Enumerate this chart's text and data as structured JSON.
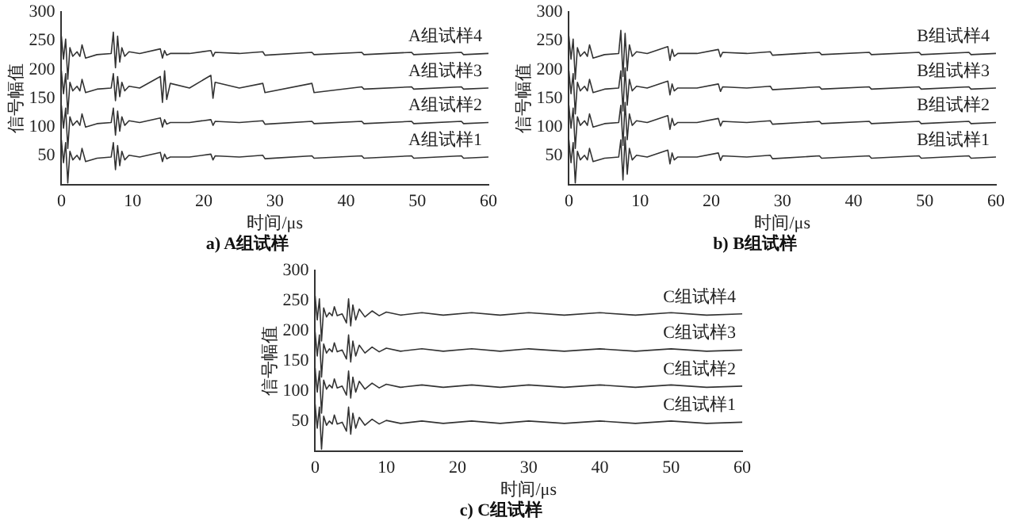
{
  "chart_data": [
    {
      "type": "line",
      "title": "a) A组试样",
      "xlabel": "时间/μs",
      "ylabel": "信号幅值",
      "xlim": [
        0,
        60
      ],
      "xticks": [
        0,
        10,
        20,
        30,
        40,
        50,
        60
      ],
      "ylim": [
        0,
        300
      ],
      "yticks": [
        50,
        100,
        150,
        200,
        250,
        300
      ],
      "grid": false,
      "legend": false,
      "x": [
        0,
        0.3,
        0.6,
        0.9,
        1.2,
        1.6,
        2.2,
        2.6,
        2.9,
        3.4,
        5,
        7,
        7.3,
        7.6,
        7.9,
        8.2,
        8.5,
        8.9,
        9.5,
        11,
        13.9,
        14.2,
        14.5,
        14.8,
        15.3,
        18,
        21,
        21.3,
        21.6,
        25,
        28.3,
        28.6,
        35.2,
        35.5,
        42.2,
        42.5,
        49.2,
        49.5,
        56.2,
        56.5,
        60
      ],
      "series": [
        {
          "name": "A组试样1",
          "color": "#333333",
          "values": [
            78,
            38,
            73,
            3,
            58,
            43,
            51,
            43,
            63,
            40,
            46,
            48,
            73,
            26,
            68,
            33,
            58,
            43,
            51,
            48,
            56,
            40,
            53,
            45,
            48,
            48,
            53,
            43,
            50,
            48,
            51,
            45,
            50,
            46,
            50,
            46,
            50,
            46,
            50,
            46,
            48
          ]
        },
        {
          "name": "A组试样2",
          "color": "#333333",
          "values": [
            138,
            98,
            133,
            63,
            118,
            103,
            111,
            103,
            123,
            100,
            106,
            108,
            133,
            86,
            128,
            93,
            118,
            103,
            111,
            108,
            116,
            100,
            113,
            105,
            108,
            108,
            113,
            103,
            110,
            108,
            111,
            105,
            110,
            106,
            110,
            106,
            110,
            106,
            110,
            106,
            108
          ]
        },
        {
          "name": "A组试样3",
          "color": "#333333",
          "values": [
            198,
            158,
            193,
            123,
            178,
            163,
            171,
            163,
            183,
            160,
            166,
            168,
            193,
            146,
            188,
            153,
            178,
            163,
            171,
            168,
            188,
            143,
            198,
            148,
            176,
            168,
            190,
            150,
            178,
            168,
            176,
            160,
            176,
            160,
            170,
            166,
            170,
            166,
            170,
            166,
            168
          ]
        },
        {
          "name": "A组试样4",
          "color": "#333333",
          "values": [
            258,
            218,
            253,
            183,
            238,
            223,
            231,
            223,
            243,
            220,
            226,
            228,
            265,
            203,
            258,
            213,
            238,
            223,
            231,
            228,
            236,
            220,
            233,
            225,
            228,
            228,
            233,
            223,
            230,
            228,
            231,
            225,
            230,
            226,
            230,
            226,
            230,
            226,
            230,
            226,
            228
          ]
        }
      ]
    },
    {
      "type": "line",
      "title": "b) B组试样",
      "xlabel": "时间/μs",
      "ylabel": "信号幅值",
      "xlim": [
        0,
        60
      ],
      "xticks": [
        0,
        10,
        20,
        30,
        40,
        50,
        60
      ],
      "ylim": [
        0,
        300
      ],
      "yticks": [
        50,
        100,
        150,
        200,
        250,
        300
      ],
      "grid": false,
      "legend": false,
      "x": [
        0,
        0.3,
        0.6,
        0.9,
        1.2,
        1.6,
        2.2,
        2.6,
        2.9,
        3.4,
        5,
        7,
        7.3,
        7.6,
        7.9,
        8.2,
        8.5,
        8.9,
        9.5,
        11,
        13.9,
        14.2,
        14.5,
        14.8,
        15.3,
        18,
        21,
        21.3,
        21.6,
        25,
        28.3,
        28.6,
        35.2,
        35.5,
        42.2,
        42.5,
        49.2,
        49.5,
        56.2,
        56.5,
        60
      ],
      "series": [
        {
          "name": "B组试样1",
          "color": "#333333",
          "values": [
            78,
            38,
            73,
            3,
            58,
            43,
            51,
            43,
            63,
            40,
            46,
            48,
            78,
            8,
            83,
            18,
            63,
            43,
            51,
            48,
            60,
            36,
            55,
            43,
            48,
            48,
            55,
            42,
            50,
            48,
            51,
            45,
            50,
            46,
            50,
            46,
            50,
            46,
            50,
            46,
            48
          ]
        },
        {
          "name": "B组试样2",
          "color": "#333333",
          "values": [
            138,
            98,
            133,
            63,
            118,
            103,
            111,
            103,
            123,
            100,
            106,
            108,
            138,
            68,
            143,
            78,
            123,
            103,
            111,
            108,
            120,
            96,
            115,
            103,
            108,
            108,
            115,
            102,
            110,
            108,
            111,
            105,
            110,
            106,
            110,
            106,
            110,
            106,
            110,
            106,
            108
          ]
        },
        {
          "name": "B组试样3",
          "color": "#333333",
          "values": [
            198,
            158,
            193,
            123,
            178,
            163,
            171,
            163,
            183,
            160,
            166,
            168,
            198,
            128,
            203,
            138,
            183,
            163,
            171,
            168,
            180,
            156,
            175,
            163,
            168,
            168,
            175,
            162,
            170,
            168,
            171,
            165,
            170,
            166,
            170,
            166,
            170,
            166,
            170,
            166,
            168
          ]
        },
        {
          "name": "B组试样4",
          "color": "#333333",
          "values": [
            258,
            218,
            253,
            183,
            238,
            223,
            231,
            223,
            243,
            220,
            226,
            228,
            268,
            188,
            263,
            198,
            243,
            223,
            231,
            228,
            240,
            216,
            235,
            223,
            228,
            228,
            235,
            222,
            230,
            228,
            231,
            225,
            230,
            226,
            230,
            226,
            230,
            226,
            230,
            226,
            228
          ]
        }
      ]
    },
    {
      "type": "line",
      "title": "c) C组试样",
      "xlabel": "时间/μs",
      "ylabel": "信号幅值",
      "xlim": [
        0,
        60
      ],
      "xticks": [
        0,
        10,
        20,
        30,
        40,
        50,
        60
      ],
      "ylim": [
        0,
        300
      ],
      "yticks": [
        50,
        100,
        150,
        200,
        250,
        300
      ],
      "grid": false,
      "legend": false,
      "x": [
        0,
        0.3,
        0.6,
        0.9,
        1.2,
        1.6,
        2.0,
        2.4,
        2.7,
        3.1,
        3.8,
        4.4,
        4.7,
        5.0,
        5.3,
        5.7,
        6.2,
        7,
        8,
        9,
        10,
        12,
        15,
        18,
        22,
        26,
        30,
        35,
        40,
        45,
        50,
        55,
        60
      ],
      "series": [
        {
          "name": "C组试样1",
          "color": "#333333",
          "values": [
            78,
            38,
            73,
            3,
            58,
            43,
            50,
            45,
            60,
            45,
            48,
            33,
            73,
            28,
            63,
            38,
            56,
            43,
            53,
            45,
            51,
            46,
            50,
            46,
            50,
            46,
            50,
            46,
            50,
            46,
            50,
            46,
            48
          ]
        },
        {
          "name": "C组试样2",
          "color": "#333333",
          "values": [
            138,
            98,
            133,
            63,
            118,
            103,
            110,
            105,
            120,
            105,
            108,
            93,
            133,
            88,
            123,
            98,
            116,
            103,
            113,
            105,
            111,
            106,
            110,
            106,
            110,
            106,
            110,
            106,
            110,
            106,
            110,
            106,
            108
          ]
        },
        {
          "name": "C组试样3",
          "color": "#333333",
          "values": [
            198,
            158,
            193,
            123,
            178,
            163,
            170,
            165,
            180,
            165,
            168,
            153,
            193,
            148,
            183,
            158,
            176,
            163,
            173,
            165,
            171,
            166,
            170,
            166,
            170,
            166,
            170,
            166,
            170,
            166,
            170,
            166,
            168
          ]
        },
        {
          "name": "C组试样4",
          "color": "#333333",
          "values": [
            258,
            218,
            253,
            183,
            238,
            223,
            230,
            225,
            240,
            225,
            228,
            213,
            253,
            208,
            243,
            218,
            236,
            223,
            233,
            225,
            231,
            226,
            230,
            226,
            230,
            226,
            230,
            226,
            230,
            226,
            230,
            226,
            228
          ]
        }
      ]
    }
  ]
}
